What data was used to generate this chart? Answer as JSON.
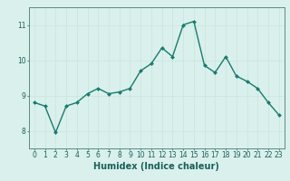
{
  "x": [
    0,
    1,
    2,
    3,
    4,
    5,
    6,
    7,
    8,
    9,
    10,
    11,
    12,
    13,
    14,
    15,
    16,
    17,
    18,
    19,
    20,
    21,
    22,
    23
  ],
  "y": [
    8.8,
    8.7,
    7.95,
    8.7,
    8.8,
    9.05,
    9.2,
    9.05,
    9.1,
    9.2,
    9.7,
    9.9,
    10.35,
    10.1,
    11.0,
    11.1,
    9.85,
    9.65,
    10.1,
    9.55,
    9.4,
    9.2,
    8.8,
    8.45
  ],
  "line_color": "#1a7a6e",
  "marker": "D",
  "marker_size": 2.0,
  "line_width": 1.0,
  "xlabel": "Humidex (Indice chaleur)",
  "xlabel_fontsize": 7,
  "xlabel_color": "#1a5f5a",
  "ylim": [
    7.5,
    11.5
  ],
  "xlim": [
    -0.5,
    23.5
  ],
  "yticks": [
    8,
    9,
    10,
    11
  ],
  "xticks": [
    0,
    1,
    2,
    3,
    4,
    5,
    6,
    7,
    8,
    9,
    10,
    11,
    12,
    13,
    14,
    15,
    16,
    17,
    18,
    19,
    20,
    21,
    22,
    23
  ],
  "tick_fontsize": 5.5,
  "tick_color": "#1a5f5a",
  "grid_color": "#c8e8e0",
  "grid_linewidth": 0.6,
  "background_color": "#daf0ec",
  "axis_color": "#5a8a84"
}
